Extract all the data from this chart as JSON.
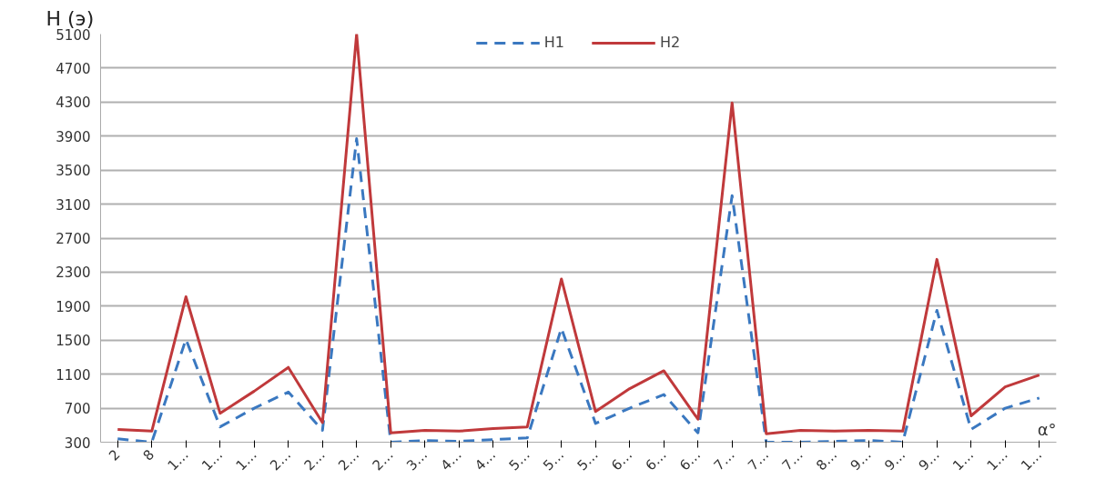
{
  "chart_data": {
    "type": "line",
    "ylabel": "H (э)",
    "xlabel": "α°",
    "categories": [
      "2",
      "8",
      "1…",
      "1…",
      "1…",
      "2…",
      "2…",
      "2…",
      "2…",
      "3…",
      "4…",
      "4…",
      "5…",
      "5…",
      "5…",
      "6…",
      "6…",
      "6…",
      "7…",
      "7…",
      "7…",
      "8…",
      "9…",
      "9…",
      "9…",
      "1…",
      "1…",
      "1…"
    ],
    "series": [
      {
        "name": "H1",
        "color": "#3a78c0",
        "line_style": "dashed",
        "values": [
          340,
          300,
          1510,
          480,
          700,
          890,
          440,
          3870,
          300,
          320,
          310,
          330,
          350,
          1640,
          520,
          700,
          860,
          410,
          3200,
          300,
          300,
          310,
          320,
          300,
          1850,
          450,
          700,
          820
        ]
      },
      {
        "name": "H2",
        "color": "#c0393b",
        "line_style": "solid",
        "values": [
          450,
          430,
          2010,
          640,
          900,
          1180,
          530,
          5100,
          410,
          440,
          430,
          460,
          480,
          2220,
          660,
          930,
          1140,
          570,
          4290,
          400,
          440,
          430,
          440,
          430,
          2450,
          610,
          950,
          1090
        ]
      }
    ],
    "ylim": [
      300,
      5100
    ],
    "yticks": [
      300,
      700,
      1100,
      1500,
      1900,
      2300,
      2700,
      3100,
      3500,
      3900,
      4300,
      4700,
      5100
    ],
    "grid": "y",
    "legend": "top",
    "marker": "none"
  }
}
